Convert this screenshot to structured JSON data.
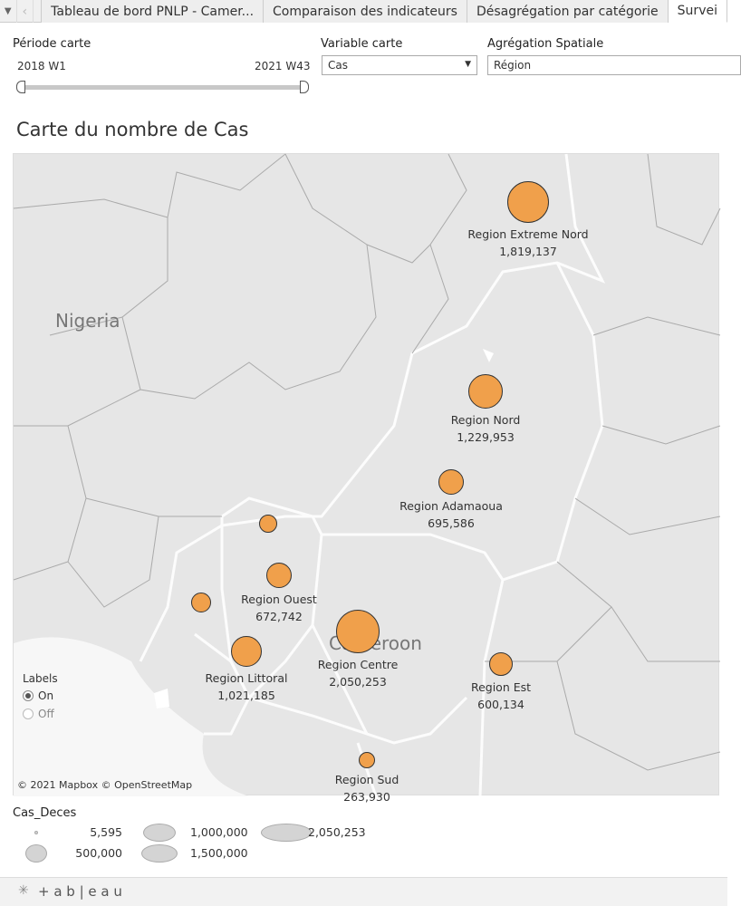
{
  "tabs": {
    "menu_icon": "caret-down-icon",
    "back_icon": "chevron-left-icon",
    "items": [
      "Tableau de bord PNLP - Camer...",
      "Comparaison des indicateurs",
      "Désagrégation par catégorie",
      "Survei"
    ]
  },
  "filters": {
    "periode": {
      "label": "Période carte",
      "start": "2018 W1",
      "end": "2021 W43",
      "range_fraction": [
        0,
        1
      ]
    },
    "variable": {
      "label": "Variable carte",
      "value": "Cas"
    },
    "aggregation": {
      "label": "Agrégation Spatiale",
      "value": "Région"
    }
  },
  "map": {
    "title": "Carte du nombre de Cas",
    "country_labels": [
      "Nigeria",
      "Cameroon"
    ],
    "marker_color": "#f0a04b",
    "regions": [
      {
        "name": "Region Extreme Nord",
        "value": "1,819,137"
      },
      {
        "name": "Region Nord",
        "value": "1,229,953"
      },
      {
        "name": "Region Adamaoua",
        "value": "695,586"
      },
      {
        "name": "Region Ouest",
        "value": "672,742"
      },
      {
        "name": "Region Centre",
        "value": "2,050,253"
      },
      {
        "name": "Region Littoral",
        "value": "1,021,185"
      },
      {
        "name": "Region Est",
        "value": "600,134"
      },
      {
        "name": "Region Sud",
        "value": "263,930"
      }
    ],
    "labels_toggle": {
      "title": "Labels",
      "options": [
        "On",
        "Off"
      ],
      "selected": "On"
    },
    "attribution": "© 2021 Mapbox  © OpenStreetMap"
  },
  "legend": {
    "title": "Cas_Deces",
    "items": [
      "5,595",
      "500,000",
      "1,000,000",
      "1,500,000",
      "2,050,253"
    ]
  },
  "footer": {
    "logo": "+ a b | e a u"
  }
}
